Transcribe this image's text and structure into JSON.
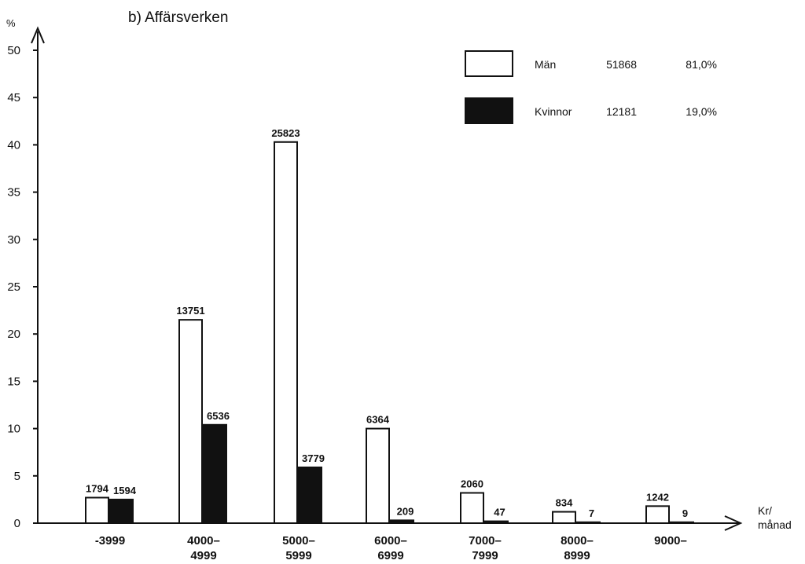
{
  "chart_data": {
    "type": "bar",
    "title": "b) Affärsverken",
    "ylabel": "%",
    "xlabel": [
      "Kr/",
      "månad"
    ],
    "ylim": [
      0,
      50
    ],
    "yticks": [
      0,
      5,
      10,
      15,
      20,
      25,
      30,
      35,
      40,
      45,
      50
    ],
    "categories": [
      [
        "-3999"
      ],
      [
        "4000–",
        "4999"
      ],
      [
        "5000–",
        "5999"
      ],
      [
        "6000–",
        "6999"
      ],
      [
        "7000–",
        "7999"
      ],
      [
        "8000–",
        "8999"
      ],
      [
        "9000–"
      ]
    ],
    "series": [
      {
        "name": "Män",
        "fill": "#ffffff",
        "values": [
          2.7,
          21.5,
          40.3,
          10.0,
          3.2,
          1.2,
          1.8
        ],
        "labels": [
          "1794",
          "13751",
          "25823",
          "6364",
          "2060",
          "834",
          "1242"
        ],
        "legend_count": "51868",
        "legend_pct": "81,0%"
      },
      {
        "name": "Kvinnor",
        "fill": "#111111",
        "values": [
          2.5,
          10.4,
          5.9,
          0.3,
          0.2,
          0.1,
          0.1
        ],
        "labels": [
          "1594",
          "6536",
          "3779",
          "209",
          "47",
          "7",
          "9"
        ],
        "legend_count": "12181",
        "legend_pct": "19,0%"
      }
    ],
    "grid": false,
    "legend_position": "top-right"
  }
}
